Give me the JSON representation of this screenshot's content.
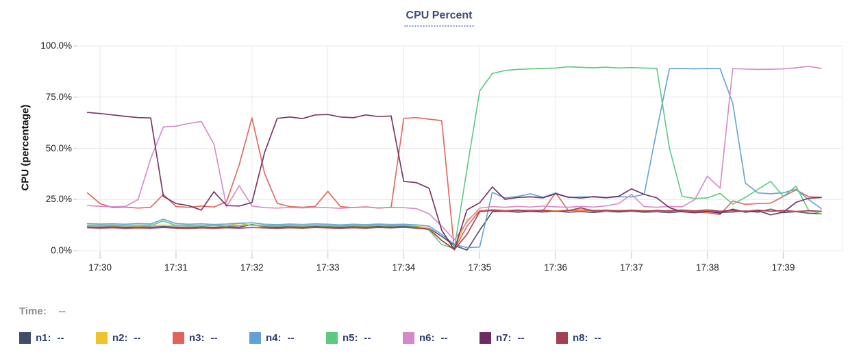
{
  "chart_data": {
    "type": "line",
    "title": "CPU Percent",
    "ylabel": "CPU (percentage)",
    "y_tick_labels": [
      "0.0%",
      "25.0%",
      "50.0%",
      "75.0%",
      "100.0%"
    ],
    "y_tick_values": [
      0,
      25,
      50,
      75,
      100
    ],
    "ylim": [
      0,
      100
    ],
    "x_tick_labels": [
      "17:30",
      "17:31",
      "17:32",
      "17:33",
      "17:34",
      "17:35",
      "17:36",
      "17:37",
      "17:38",
      "17:39"
    ],
    "grid": "on",
    "legend_position": "bottom",
    "start_time": "17:29:50",
    "sample_interval_seconds": 10,
    "status_row": {
      "label": "Time:",
      "value": "--"
    },
    "legend_placeholder": "--",
    "series": [
      {
        "name": "n1",
        "color": "#414e68",
        "values": [
          11.6,
          11.5,
          11.7,
          11.4,
          11.6,
          11.5,
          11.8,
          11.5,
          11.3,
          11.6,
          11.4,
          11.7,
          11.5,
          12.8,
          11.6,
          11.4,
          11.7,
          11.5,
          11.8,
          11.6,
          11.4,
          11.7,
          11.5,
          11.8,
          11.6,
          11.9,
          11.5,
          11.0,
          7.0,
          2.5,
          0.3,
          10.0,
          19.0,
          19.3,
          18.8,
          19.2,
          18.9,
          19.4,
          18.8,
          19.1,
          18.7,
          19.2,
          18.9,
          19.3,
          18.8,
          19.0,
          18.6,
          19.1,
          18.8,
          19.3,
          18.7,
          18.9,
          19.4,
          18.8,
          20.3,
          18.6,
          19.0,
          18.3,
          18.0
        ]
      },
      {
        "name": "n2",
        "color": "#f0c32a",
        "values": [
          12.2,
          12.4,
          12.1,
          12.3,
          12.0,
          12.3,
          12.5,
          12.2,
          12.4,
          12.1,
          12.3,
          12.0,
          13.4,
          12.3,
          12.1,
          12.4,
          12.2,
          12.0,
          12.3,
          12.1,
          12.4,
          12.2,
          12.0,
          12.3,
          12.1,
          12.4,
          12.0,
          11.0,
          5.0,
          1.0,
          15.0,
          19.5,
          20.2,
          19.6,
          19.9,
          19.5,
          19.8,
          19.4,
          19.7,
          19.5,
          19.9,
          19.4,
          19.8,
          19.5,
          19.7,
          19.3,
          19.6,
          19.9,
          19.4,
          19.7,
          19.3,
          19.6,
          19.2,
          19.5,
          19.1,
          19.4,
          19.0,
          19.3,
          19.0
        ]
      },
      {
        "name": "n3",
        "color": "#e0635a",
        "values": [
          28.2,
          23.0,
          21.0,
          21.3,
          20.8,
          21.2,
          27.5,
          21.5,
          21.2,
          21.8,
          21.3,
          24.0,
          42.0,
          64.8,
          37.7,
          23.1,
          21.5,
          21.2,
          21.6,
          29.0,
          21.5,
          21.0,
          21.4,
          20.8,
          21.2,
          64.6,
          65.0,
          64.2,
          63.5,
          0.5,
          12.0,
          19.5,
          19.8,
          19.6,
          19.4,
          19.8,
          19.5,
          28.3,
          19.6,
          19.9,
          19.4,
          19.7,
          19.5,
          19.8,
          19.5,
          19.2,
          19.6,
          19.3,
          18.9,
          18.5,
          17.7,
          24.3,
          22.6,
          23.0,
          23.2,
          26.5,
          29.7,
          26.4,
          26.0
        ]
      },
      {
        "name": "n4",
        "color": "#61a1d8",
        "values": [
          13.2,
          13.0,
          13.1,
          12.9,
          13.2,
          13.0,
          15.4,
          13.2,
          12.9,
          13.1,
          12.8,
          13.0,
          13.4,
          13.6,
          12.9,
          12.7,
          13.0,
          12.8,
          13.1,
          12.9,
          12.6,
          12.9,
          12.7,
          13.0,
          12.8,
          12.9,
          12.6,
          12.0,
          8.0,
          3.0,
          1.5,
          1.8,
          28.5,
          25.8,
          26.5,
          27.8,
          26.1,
          28.2,
          25.9,
          26.3,
          26.2,
          25.8,
          26.4,
          26.2,
          27.5,
          59.0,
          88.9,
          89.0,
          88.8,
          89.0,
          88.9,
          72.0,
          33.0,
          28.2,
          27.8,
          28.3,
          30.0,
          25.0,
          20.5
        ]
      },
      {
        "name": "n5",
        "color": "#5cc97f",
        "values": [
          12.4,
          12.2,
          12.4,
          12.1,
          12.3,
          12.2,
          14.5,
          12.3,
          12.0,
          12.2,
          12.4,
          12.1,
          12.3,
          12.6,
          12.2,
          12.0,
          12.3,
          12.1,
          12.4,
          12.2,
          12.0,
          12.3,
          12.1,
          12.4,
          12.2,
          12.3,
          11.8,
          10.0,
          3.0,
          1.0,
          40.0,
          78.0,
          86.5,
          88.0,
          88.5,
          88.8,
          89.0,
          89.2,
          89.8,
          89.5,
          89.3,
          89.6,
          89.2,
          89.4,
          89.2,
          89.0,
          50.0,
          26.5,
          25.5,
          25.8,
          28.0,
          22.7,
          26.0,
          30.0,
          33.8,
          26.5,
          31.5,
          19.7,
          18.0
        ]
      },
      {
        "name": "n6",
        "color": "#d588c8",
        "values": [
          22.0,
          21.7,
          21.4,
          21.6,
          25.0,
          44.9,
          60.4,
          60.8,
          62.1,
          63.1,
          52.0,
          21.5,
          31.7,
          21.8,
          21.0,
          20.8,
          21.1,
          20.9,
          21.2,
          21.0,
          20.7,
          21.1,
          21.3,
          20.9,
          21.1,
          21.0,
          20.5,
          18.0,
          12.0,
          5.3,
          14.0,
          20.8,
          21.5,
          21.2,
          21.6,
          21.3,
          21.8,
          21.4,
          21.2,
          21.6,
          21.3,
          21.9,
          23.0,
          27.5,
          21.5,
          21.2,
          21.6,
          21.4,
          25.0,
          36.4,
          30.5,
          88.9,
          88.7,
          88.5,
          88.6,
          88.8,
          89.3,
          90.0,
          89.0
        ]
      },
      {
        "name": "n7",
        "color": "#6f2b61",
        "values": [
          67.5,
          67.0,
          66.3,
          65.6,
          65.0,
          64.8,
          26.5,
          23.0,
          22.0,
          19.8,
          28.8,
          22.0,
          21.8,
          23.5,
          48.0,
          64.6,
          65.3,
          64.5,
          66.3,
          66.5,
          65.3,
          64.9,
          66.3,
          65.5,
          65.8,
          33.8,
          33.2,
          30.5,
          10.0,
          0.5,
          20.0,
          23.4,
          31.1,
          25.1,
          26.0,
          26.3,
          25.8,
          27.8,
          26.2,
          25.7,
          26.4,
          25.9,
          26.6,
          30.2,
          27.5,
          25.8,
          21.0,
          19.0,
          18.5,
          19.2,
          18.3,
          20.3,
          18.8,
          19.5,
          17.5,
          18.8,
          23.6,
          25.6,
          26.0
        ]
      },
      {
        "name": "n8",
        "color": "#a23f53",
        "values": [
          11.2,
          11.0,
          11.2,
          10.9,
          11.1,
          11.0,
          11.3,
          11.0,
          10.8,
          11.1,
          10.9,
          11.2,
          11.0,
          11.3,
          11.1,
          10.9,
          11.2,
          11.0,
          11.3,
          11.1,
          10.9,
          11.2,
          11.0,
          11.3,
          11.1,
          11.4,
          11.0,
          10.5,
          5.0,
          0.5,
          8.0,
          19.0,
          19.6,
          19.2,
          19.8,
          19.3,
          19.7,
          19.2,
          19.6,
          20.9,
          19.4,
          19.8,
          19.3,
          19.6,
          19.2,
          19.7,
          19.3,
          19.8,
          19.4,
          19.9,
          19.3,
          19.7,
          19.2,
          19.8,
          19.3,
          19.6,
          19.2,
          19.5,
          19.3
        ]
      }
    ],
    "colors": {
      "grid": "#e8e8e8",
      "tick": "#d6d6d6",
      "title_text": "#3d4d73",
      "title_underline": "#8393bd",
      "legend_text": "#2b3f6d",
      "status_text": "#8a8d93"
    }
  }
}
